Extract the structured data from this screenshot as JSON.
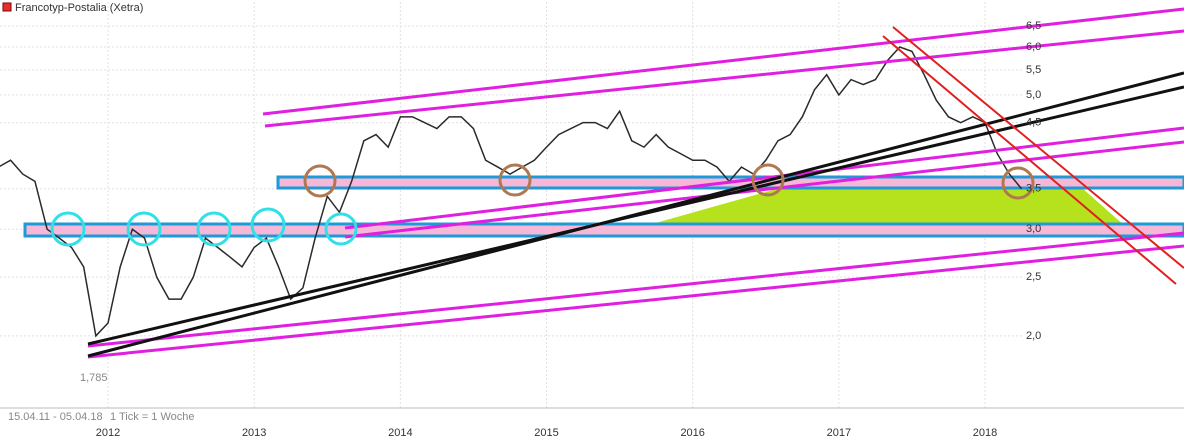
{
  "chart_data": {
    "type": "line",
    "title": "Francotyp-Postalia (Xetra)",
    "annotations": [
      "1,785",
      "15.04.11 - 05.04.18",
      "1 Tick = 1 Woche"
    ],
    "log_scale": true,
    "grid": true,
    "color": "#2a2a2a",
    "categories": [
      null,
      null,
      null,
      null,
      null,
      null,
      null,
      null,
      null,
      "2012",
      null,
      null,
      null,
      null,
      null,
      null,
      null,
      null,
      null,
      null,
      null,
      "2013",
      null,
      null,
      null,
      null,
      null,
      null,
      null,
      null,
      null,
      null,
      null,
      "2014",
      null,
      null,
      null,
      null,
      null,
      null,
      null,
      null,
      null,
      null,
      null,
      "2015",
      null,
      null,
      null,
      null,
      null,
      null,
      null,
      null,
      null,
      null,
      null,
      "2016",
      null,
      null,
      null,
      null,
      null,
      null,
      null,
      null,
      null,
      null,
      null,
      "2017",
      null,
      null,
      null,
      null,
      null,
      null,
      null,
      null,
      null,
      null,
      null,
      "2018",
      null,
      null,
      null
    ],
    "values": [
      3.8,
      3.9,
      3.7,
      3.6,
      3.0,
      2.9,
      2.8,
      2.6,
      2.0,
      2.1,
      2.6,
      3.0,
      2.9,
      2.5,
      2.3,
      2.3,
      2.5,
      2.9,
      2.8,
      2.7,
      2.6,
      2.8,
      2.9,
      2.6,
      2.3,
      2.4,
      2.9,
      3.4,
      3.2,
      3.6,
      4.2,
      4.3,
      4.1,
      4.6,
      4.6,
      4.5,
      4.4,
      4.6,
      4.6,
      4.4,
      3.9,
      3.8,
      3.7,
      3.8,
      3.9,
      4.1,
      4.3,
      4.4,
      4.5,
      4.5,
      4.4,
      4.7,
      4.2,
      4.1,
      4.3,
      4.1,
      4.0,
      3.9,
      3.9,
      3.8,
      3.6,
      3.8,
      3.7,
      3.9,
      4.2,
      4.3,
      4.6,
      5.1,
      5.4,
      5.0,
      5.3,
      5.2,
      5.3,
      5.7,
      6.0,
      5.9,
      5.4,
      4.9,
      4.6,
      4.5,
      4.6,
      4.5,
      4.0,
      3.7,
      3.5
    ],
    "ylim": [
      1.52,
      7.12
    ],
    "yticks": [
      {
        "value": 2.0,
        "label": "2,0"
      },
      {
        "value": 2.5,
        "label": "2,5"
      },
      {
        "value": 3.0,
        "label": "3,0"
      },
      {
        "value": 3.5,
        "label": "3,5"
      },
      {
        "value": 4.5,
        "label": "4,5"
      },
      {
        "value": 5.0,
        "label": "5,0"
      },
      {
        "value": 5.5,
        "label": "5,5"
      },
      {
        "value": 6.0,
        "label": "6,0"
      },
      {
        "value": 6.5,
        "label": "6,5"
      }
    ]
  }
}
